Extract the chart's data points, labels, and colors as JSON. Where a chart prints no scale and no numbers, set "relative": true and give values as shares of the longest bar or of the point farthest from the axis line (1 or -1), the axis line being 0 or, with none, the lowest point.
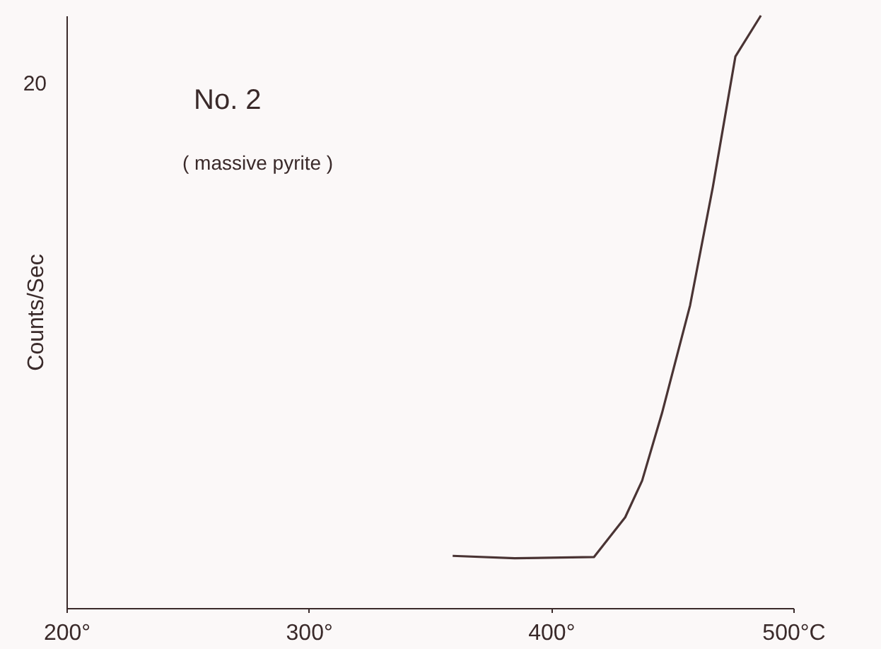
{
  "chart_data": {
    "type": "line",
    "relative": true,
    "ylabel": "Counts/Sec",
    "annotations": [
      "No. 2",
      "( massive pyrite )",
      "20"
    ],
    "x": [
      359.4,
      385,
      417.7,
      430.6,
      437.6,
      445.8,
      457.4,
      466.8,
      476.1,
      486.6
    ],
    "xlim": [
      200,
      500
    ],
    "xticks": [
      {
        "value": 200,
        "label": "200°"
      },
      {
        "value": 300,
        "label": "300°"
      },
      {
        "value": 400,
        "label": "400°"
      },
      {
        "value": 500,
        "label": "500°C"
      }
    ],
    "series": [
      {
        "color": "#4a3434",
        "values": [
          0.088,
          0.084,
          0.086,
          0.153,
          0.215,
          0.329,
          0.511,
          0.711,
          0.931,
          1.0
        ]
      }
    ],
    "grid": false,
    "marker": "none",
    "line_style": "solid"
  }
}
